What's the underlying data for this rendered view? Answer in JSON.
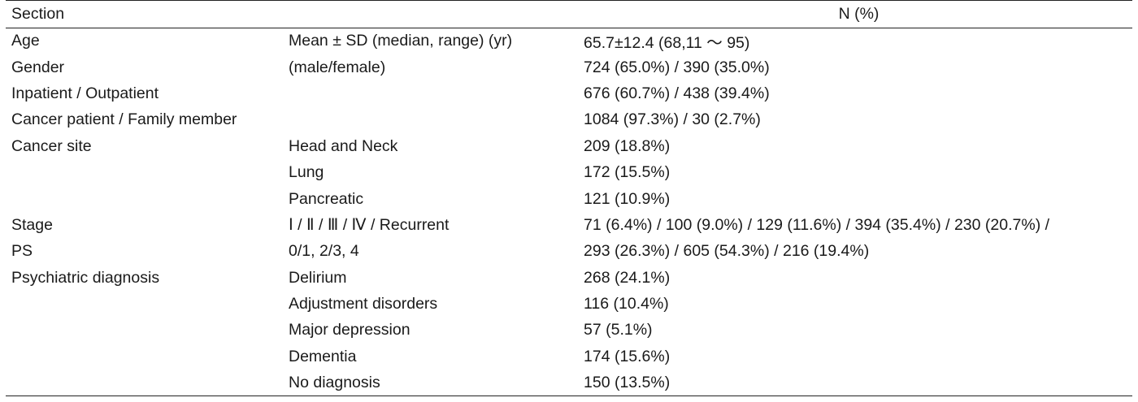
{
  "table": {
    "headers": [
      "Section",
      "",
      "N (%)"
    ],
    "rows": [
      {
        "section": "Age",
        "detail": "Mean ± SD (median, range) (yr)",
        "value": "65.7±12.4 (68,11 ～ 95)"
      },
      {
        "section": "Gender",
        "detail": "(male/female)",
        "value": "724 (65.0%) / 390 (35.0%)"
      },
      {
        "section": "Inpatient / Outpatient",
        "detail": "",
        "value": "676 (60.7%) / 438 (39.4%)"
      },
      {
        "section": "Cancer patient / Family member",
        "detail": "",
        "value": "1084 (97.3%) / 30 (2.7%)"
      },
      {
        "section": "Cancer site",
        "detail": "Head and Neck",
        "value": "209 (18.8%)"
      },
      {
        "section": "",
        "detail": "Lung",
        "value": "172 (15.5%)"
      },
      {
        "section": "",
        "detail": "Pancreatic",
        "value": "121 (10.9%)"
      },
      {
        "section": "Stage",
        "detail": "Ⅰ / Ⅱ / Ⅲ / Ⅳ / Recurrent",
        "value": "71 (6.4%) / 100 (9.0%) / 129 (11.6%) / 394 (35.4%) / 230 (20.7%) /"
      },
      {
        "section": "PS",
        "detail": "0/1, 2/3, 4",
        "value": "293 (26.3%) / 605 (54.3%) / 216 (19.4%)"
      },
      {
        "section": "Psychiatric diagnosis",
        "detail": "Delirium",
        "value": "268 (24.1%)"
      },
      {
        "section": "",
        "detail": "Adjustment disorders",
        "value": "116 (10.4%)"
      },
      {
        "section": "",
        "detail": "Major depression",
        "value": "57 (5.1%)"
      },
      {
        "section": "",
        "detail": "Dementia",
        "value": "174 (15.6%)"
      },
      {
        "section": "",
        "detail": "No diagnosis",
        "value": "150 (13.5%)"
      }
    ]
  }
}
